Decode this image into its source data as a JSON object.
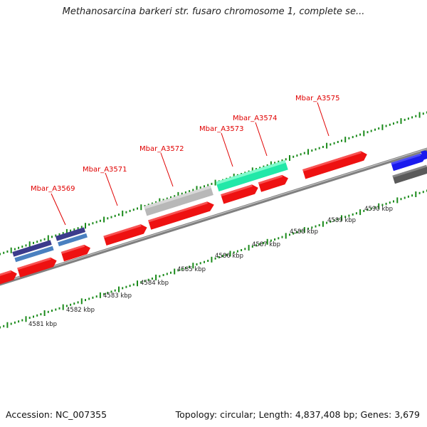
{
  "title": "Methanosarcina barkeri str. fusaro chromosome 1, complete se...",
  "footer": {
    "accession": "Accession: NC_007355",
    "summary": "Topology: circular; Length: 4,837,408 bp; Genes: 3,679"
  },
  "colors": {
    "backbone": "#808080",
    "tick": "#1a8a1a",
    "gene_label": "#e00000",
    "gene_red": "#ee1111",
    "gene_gray": "#b8b8b8",
    "gene_teal": "#22e8a8",
    "gene_navy": "#3b3b8c",
    "gene_steel": "#4a80c0",
    "gene_blue": "#1a1aee",
    "gene_darkgray": "#5a5a5a"
  },
  "scale_labels": [
    "4581 kbp",
    "4582 kbp",
    "4583 kbp",
    "4584 kbp",
    "4585 kbp",
    "4586 kbp",
    "4587 kbp",
    "4588 kbp",
    "4589 kbp",
    "4590 kbp"
  ],
  "gene_labels": [
    "Mbar_A3569",
    "Mbar_A3571",
    "Mbar_A3572",
    "Mbar_A3573",
    "Mbar_A3574",
    "Mbar_A3575"
  ]
}
